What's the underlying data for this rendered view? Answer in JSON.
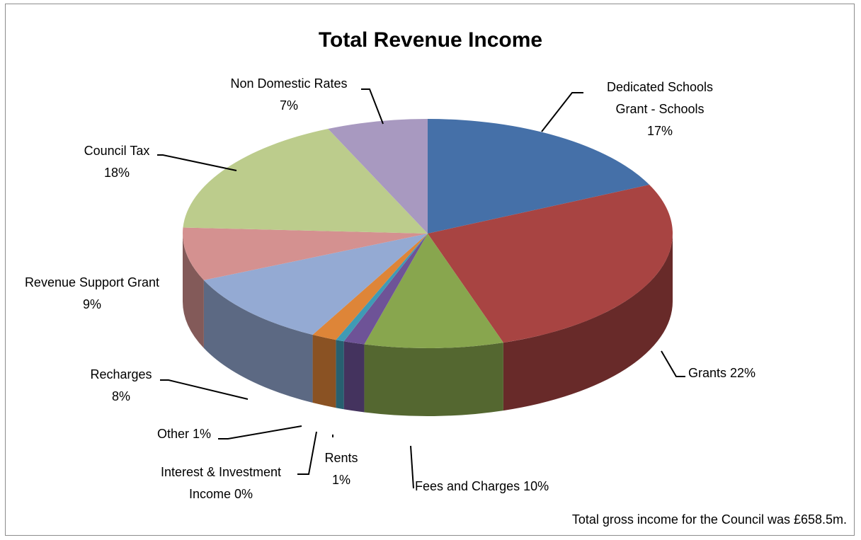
{
  "chart_data": {
    "type": "pie",
    "title": "Total Revenue Income",
    "note": "Total gross income for the Council was £658.5m.",
    "slices": [
      {
        "label_lines": [
          "Dedicated Schools",
          "Grant - Schools",
          "17%"
        ],
        "value": 17,
        "color": "#4570A8"
      },
      {
        "label_lines": [
          "Grants 22%"
        ],
        "value": 22,
        "color": "#A84442"
      },
      {
        "label_lines": [
          "Fees and Charges 10%"
        ],
        "value": 10,
        "color": "#88A64E"
      },
      {
        "label_lines": [
          "Rents",
          "1%"
        ],
        "value": 1,
        "color": "#6E5397"
      },
      {
        "label_lines": [
          "Interest & Investment",
          "Income 0%"
        ],
        "value": 0,
        "color": "#3F9BB5"
      },
      {
        "label_lines": [
          "Other 1%"
        ],
        "value": 1,
        "color": "#DE8538"
      },
      {
        "label_lines": [
          "Recharges",
          "8%"
        ],
        "value": 8,
        "color": "#94AAD3"
      },
      {
        "label_lines": [
          "Revenue Support Grant",
          "9%"
        ],
        "value": 9,
        "color": "#D49190"
      },
      {
        "label_lines": [
          "Council Tax",
          "18%"
        ],
        "value": 18,
        "color": "#BCCC8C"
      },
      {
        "label_lines": [
          "Non Domestic Rates",
          "7%"
        ],
        "value": 7,
        "color": "#A899C0"
      }
    ]
  }
}
